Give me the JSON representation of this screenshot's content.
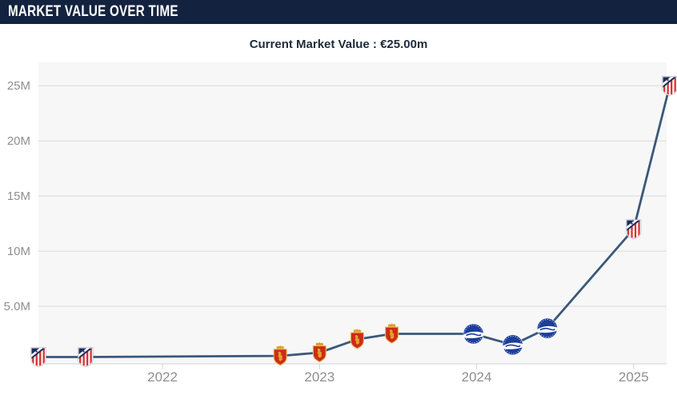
{
  "header": {
    "title": "MARKET VALUE OVER TIME"
  },
  "subtitle": {
    "text": "Current Market Value : €25.00m"
  },
  "colors": {
    "header_bg": "#13233f",
    "line": "#3a5878",
    "plot_bg": "#f7f7f8",
    "grid": "#dadada",
    "axis_line": "#cfd1d4",
    "axis_label": "#8f8f8f",
    "atletico_navy": "#1b2c5e",
    "atletico_red": "#d63330",
    "zaragoza_red": "#cf2a1b",
    "zaragoza_gold": "#dfa32a",
    "alaves_blue": "#1d3e9b"
  },
  "chart_data": {
    "type": "line",
    "title": "Market value over time",
    "xlabel": "",
    "ylabel": "",
    "grid": true,
    "legend": "none",
    "x_range": [
      2021.21,
      2025.21
    ],
    "y_range": [
      0,
      27.12
    ],
    "x_ticks": [
      2022,
      2023,
      2024,
      2025
    ],
    "x_tick_labels": [
      "2022",
      "2023",
      "2024",
      "2025"
    ],
    "y_ticks": [
      5,
      10,
      15,
      20,
      25
    ],
    "y_tick_labels": [
      "5.0M",
      "10M",
      "15M",
      "20M",
      "25M"
    ],
    "series": [
      {
        "name": "Market value (€m)",
        "points": [
          {
            "x": 2021.21,
            "value": 0.4,
            "club": "Atlético Madrid",
            "crest": "atletico"
          },
          {
            "x": 2021.51,
            "value": 0.4,
            "club": "Atlético Madrid",
            "crest": "atletico"
          },
          {
            "x": 2022.75,
            "value": 0.5,
            "club": "Real Zaragoza",
            "crest": "zaragoza"
          },
          {
            "x": 2023.0,
            "value": 0.8,
            "club": "Real Zaragoza",
            "crest": "zaragoza"
          },
          {
            "x": 2023.24,
            "value": 2.0,
            "club": "Real Zaragoza",
            "crest": "zaragoza"
          },
          {
            "x": 2023.46,
            "value": 2.5,
            "club": "Real Zaragoza",
            "crest": "zaragoza"
          },
          {
            "x": 2023.98,
            "value": 2.5,
            "club": "Deportivo Alavés",
            "crest": "alaves"
          },
          {
            "x": 2024.23,
            "value": 1.5,
            "club": "Deportivo Alavés",
            "crest": "alaves"
          },
          {
            "x": 2024.45,
            "value": 3.0,
            "club": "Deportivo Alavés",
            "crest": "alaves"
          },
          {
            "x": 2025.0,
            "value": 12.0,
            "club": "Atlético Madrid",
            "crest": "atletico"
          },
          {
            "x": 2025.23,
            "value": 25.0,
            "club": "Atlético Madrid",
            "crest": "atletico"
          }
        ]
      }
    ]
  }
}
